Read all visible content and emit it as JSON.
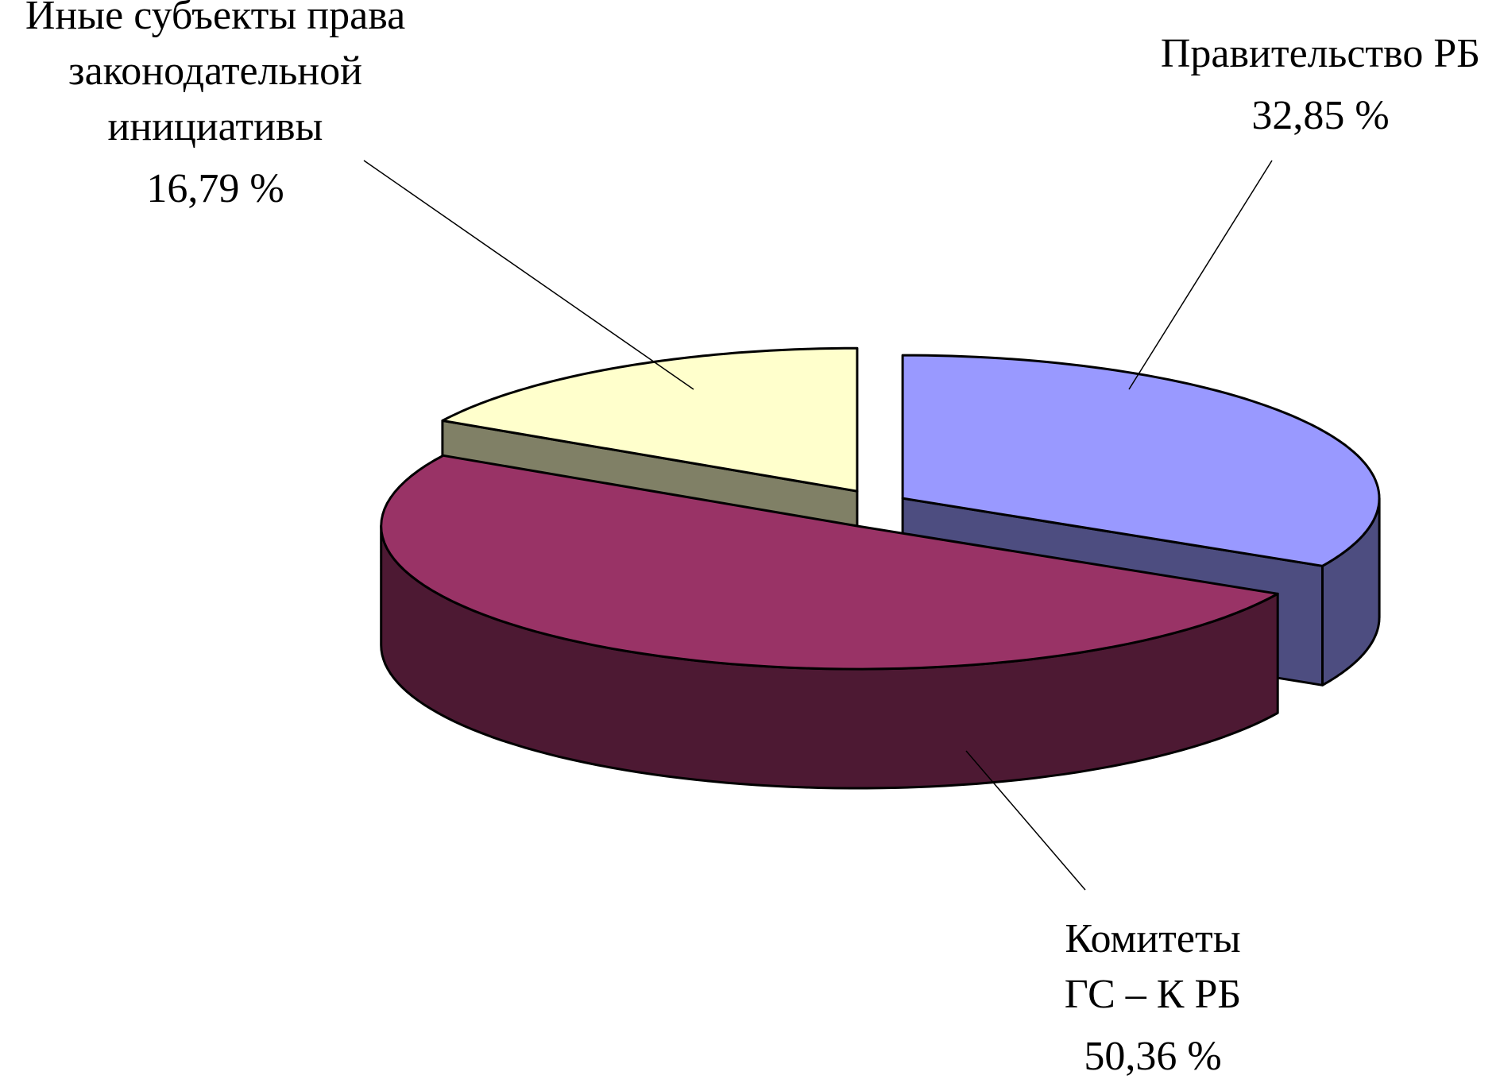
{
  "chart_data": {
    "type": "pie3d",
    "categories": [
      [
        "Правительство РБ"
      ],
      [
        "Комитеты",
        "ГС  –  К РБ"
      ],
      [
        "Иные субъекты права",
        "законодательной",
        "инициативы"
      ]
    ],
    "values": [
      32.85,
      50.36,
      16.79
    ],
    "value_labels": [
      "32,85 %",
      "50,36 %",
      "16,79 %"
    ],
    "colors": [
      "#9999ff",
      "#993366",
      "#ffffcc"
    ],
    "side_colors": [
      "#4d4d80",
      "#4d1933",
      "#808066"
    ]
  }
}
